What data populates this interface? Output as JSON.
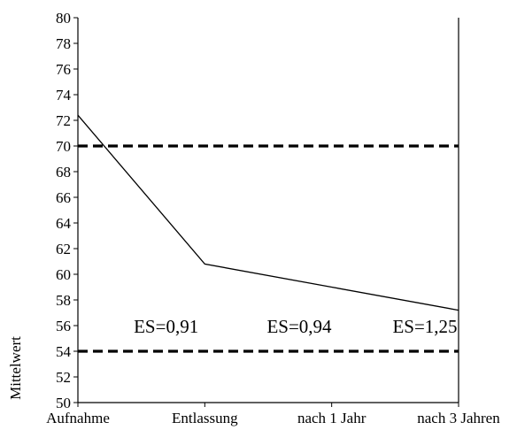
{
  "chart_data": {
    "type": "line",
    "title": "",
    "xlabel": "",
    "ylabel": "Mittelwert",
    "categories": [
      "Aufnahme",
      "Entlassung",
      "nach 1 Jahr",
      "nach 3 Jahren"
    ],
    "series": [
      {
        "values": [
          72.4,
          60.8,
          59.0,
          57.2
        ]
      }
    ],
    "reference_lines": [
      70,
      54
    ],
    "annotations": [
      "ES=0,91",
      "ES=0,94",
      "ES=1,25"
    ],
    "annotation_y": 56,
    "ylim": [
      50,
      80
    ],
    "yticks": [
      80,
      78,
      76,
      74,
      72,
      70,
      68,
      66,
      64,
      62,
      60,
      58,
      56,
      54,
      52,
      50
    ],
    "grid": false,
    "colors": {
      "line": "#000000",
      "reference": "#000000"
    }
  }
}
